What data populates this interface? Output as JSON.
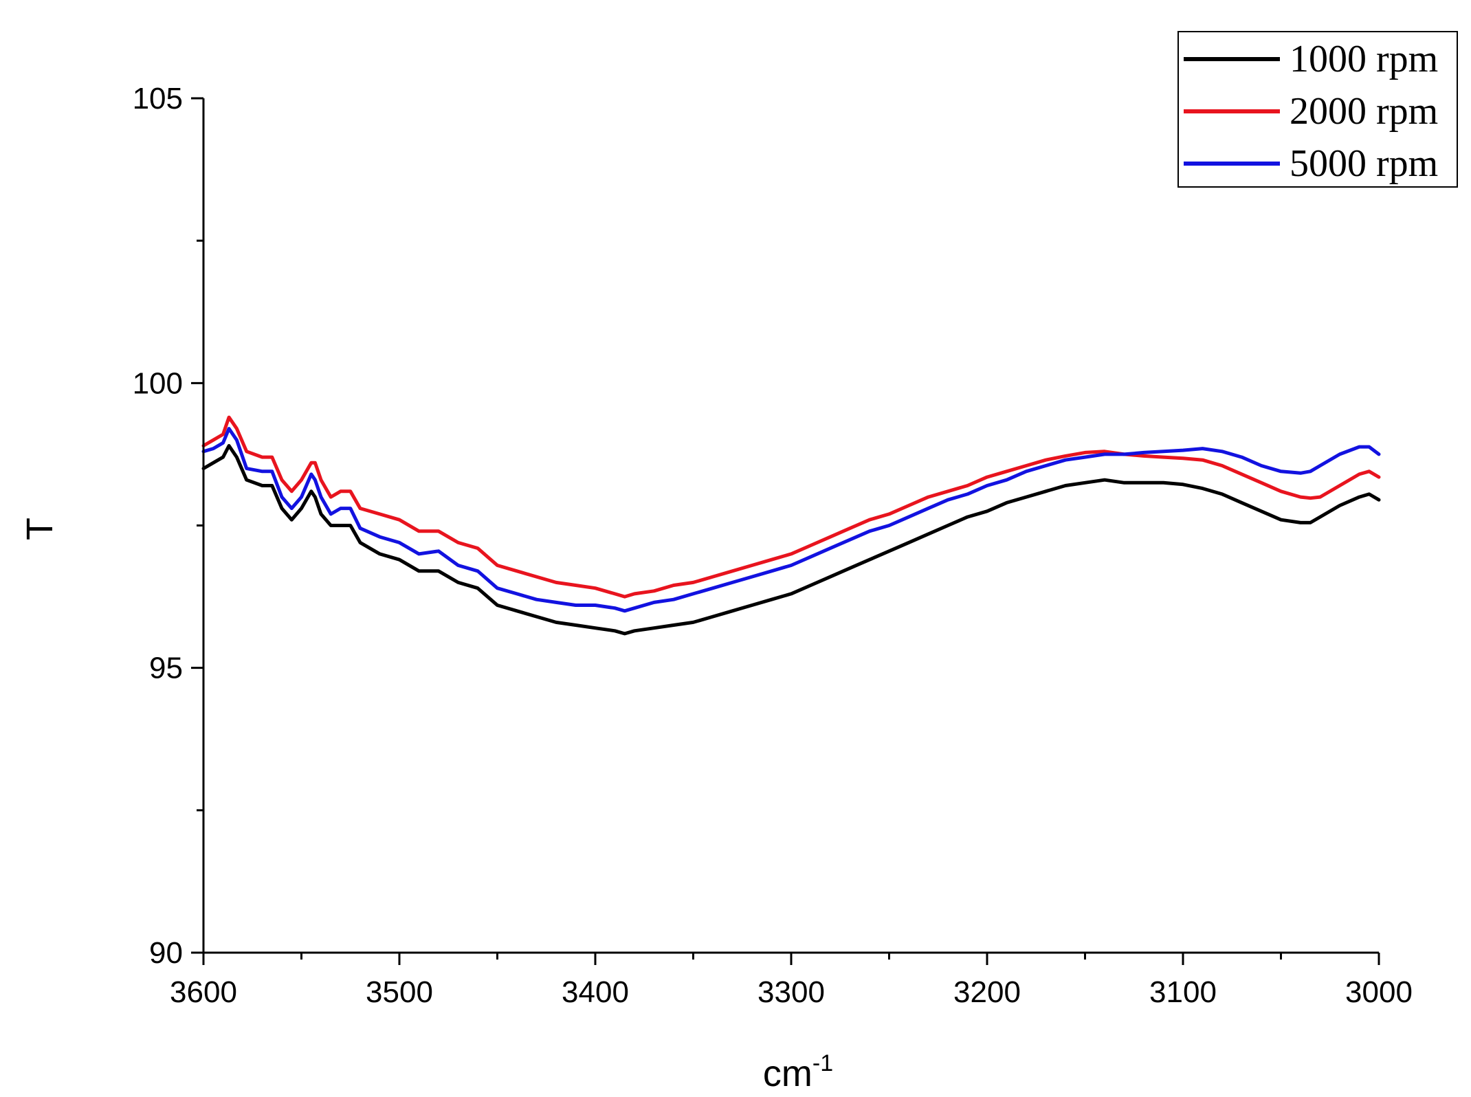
{
  "chart_data": {
    "type": "line",
    "xlabel": "cm",
    "xlabel_superscript": "-1",
    "ylabel": "T",
    "xlim": [
      3600,
      3000
    ],
    "ylim": [
      90,
      105
    ],
    "x_inverted": true,
    "x_ticks": [
      3600,
      3500,
      3400,
      3300,
      3200,
      3100,
      3000
    ],
    "x_tick_labels": [
      "3600",
      "3500",
      "3400",
      "3300",
      "3200",
      "3100",
      "3000"
    ],
    "y_ticks": [
      90,
      95,
      100,
      105
    ],
    "y_tick_labels": [
      "90",
      "95",
      "100",
      "105"
    ],
    "grid": false,
    "legend_position": "top-right",
    "series": [
      {
        "name": "1000 rpm",
        "color": "#000000",
        "x": [
          3600,
          3595,
          3590,
          3587,
          3583,
          3578,
          3570,
          3565,
          3560,
          3555,
          3550,
          3545,
          3543,
          3540,
          3535,
          3530,
          3525,
          3520,
          3510,
          3500,
          3490,
          3480,
          3470,
          3460,
          3450,
          3440,
          3430,
          3420,
          3410,
          3400,
          3390,
          3385,
          3380,
          3370,
          3360,
          3350,
          3340,
          3330,
          3320,
          3310,
          3300,
          3290,
          3280,
          3270,
          3260,
          3250,
          3240,
          3230,
          3220,
          3210,
          3200,
          3190,
          3180,
          3170,
          3160,
          3150,
          3140,
          3130,
          3120,
          3110,
          3100,
          3090,
          3080,
          3070,
          3060,
          3050,
          3040,
          3035,
          3030,
          3020,
          3010,
          3005,
          3000
        ],
        "y": [
          98.5,
          98.6,
          98.7,
          98.9,
          98.7,
          98.3,
          98.2,
          98.2,
          97.8,
          97.6,
          97.8,
          98.1,
          98.0,
          97.7,
          97.5,
          97.5,
          97.5,
          97.2,
          97.0,
          96.9,
          96.7,
          96.7,
          96.5,
          96.4,
          96.1,
          96.0,
          95.9,
          95.8,
          95.75,
          95.7,
          95.65,
          95.6,
          95.65,
          95.7,
          95.75,
          95.8,
          95.9,
          96.0,
          96.1,
          96.2,
          96.3,
          96.45,
          96.6,
          96.75,
          96.9,
          97.05,
          97.2,
          97.35,
          97.5,
          97.65,
          97.75,
          97.9,
          98.0,
          98.1,
          98.2,
          98.25,
          98.3,
          98.25,
          98.25,
          98.25,
          98.22,
          98.15,
          98.05,
          97.9,
          97.75,
          97.6,
          97.55,
          97.55,
          97.65,
          97.85,
          98.0,
          98.05,
          97.95
        ]
      },
      {
        "name": "2000 rpm",
        "color": "#e8141e",
        "x": [
          3600,
          3595,
          3590,
          3587,
          3583,
          3578,
          3570,
          3565,
          3560,
          3555,
          3550,
          3545,
          3543,
          3540,
          3535,
          3530,
          3525,
          3520,
          3510,
          3500,
          3490,
          3480,
          3470,
          3460,
          3450,
          3440,
          3430,
          3420,
          3410,
          3400,
          3390,
          3385,
          3380,
          3370,
          3360,
          3350,
          3340,
          3330,
          3320,
          3310,
          3300,
          3290,
          3280,
          3270,
          3260,
          3250,
          3240,
          3230,
          3220,
          3210,
          3200,
          3190,
          3180,
          3170,
          3160,
          3150,
          3140,
          3130,
          3120,
          3110,
          3100,
          3090,
          3080,
          3070,
          3060,
          3050,
          3040,
          3035,
          3030,
          3020,
          3010,
          3005,
          3000
        ],
        "y": [
          98.9,
          99.0,
          99.1,
          99.4,
          99.2,
          98.8,
          98.7,
          98.7,
          98.3,
          98.1,
          98.3,
          98.6,
          98.6,
          98.3,
          98.0,
          98.1,
          98.1,
          97.8,
          97.7,
          97.6,
          97.4,
          97.4,
          97.2,
          97.1,
          96.8,
          96.7,
          96.6,
          96.5,
          96.45,
          96.4,
          96.3,
          96.25,
          96.3,
          96.35,
          96.45,
          96.5,
          96.6,
          96.7,
          96.8,
          96.9,
          97.0,
          97.15,
          97.3,
          97.45,
          97.6,
          97.7,
          97.85,
          98.0,
          98.1,
          98.2,
          98.35,
          98.45,
          98.55,
          98.65,
          98.72,
          98.78,
          98.8,
          98.75,
          98.72,
          98.7,
          98.68,
          98.65,
          98.55,
          98.4,
          98.25,
          98.1,
          98.0,
          97.98,
          98.0,
          98.2,
          98.4,
          98.45,
          98.35
        ]
      },
      {
        "name": "5000 rpm",
        "color": "#1212e0",
        "x": [
          3600,
          3595,
          3590,
          3587,
          3583,
          3578,
          3570,
          3565,
          3560,
          3555,
          3550,
          3545,
          3543,
          3540,
          3535,
          3530,
          3525,
          3520,
          3510,
          3500,
          3490,
          3480,
          3470,
          3460,
          3450,
          3440,
          3430,
          3420,
          3410,
          3400,
          3390,
          3385,
          3380,
          3370,
          3360,
          3350,
          3340,
          3330,
          3320,
          3310,
          3300,
          3290,
          3280,
          3270,
          3260,
          3250,
          3240,
          3230,
          3220,
          3210,
          3200,
          3190,
          3180,
          3170,
          3160,
          3150,
          3140,
          3130,
          3120,
          3110,
          3100,
          3090,
          3080,
          3070,
          3060,
          3050,
          3040,
          3035,
          3030,
          3020,
          3010,
          3005,
          3000
        ],
        "y": [
          98.8,
          98.85,
          98.95,
          99.2,
          99.0,
          98.5,
          98.45,
          98.45,
          98.0,
          97.8,
          98.0,
          98.4,
          98.3,
          98.0,
          97.7,
          97.8,
          97.8,
          97.45,
          97.3,
          97.2,
          97.0,
          97.05,
          96.8,
          96.7,
          96.4,
          96.3,
          96.2,
          96.15,
          96.1,
          96.1,
          96.05,
          96.0,
          96.05,
          96.15,
          96.2,
          96.3,
          96.4,
          96.5,
          96.6,
          96.7,
          96.8,
          96.95,
          97.1,
          97.25,
          97.4,
          97.5,
          97.65,
          97.8,
          97.95,
          98.05,
          98.2,
          98.3,
          98.45,
          98.55,
          98.65,
          98.7,
          98.75,
          98.75,
          98.78,
          98.8,
          98.82,
          98.85,
          98.8,
          98.7,
          98.55,
          98.45,
          98.42,
          98.45,
          98.55,
          98.75,
          98.88,
          98.88,
          98.75
        ]
      }
    ]
  }
}
